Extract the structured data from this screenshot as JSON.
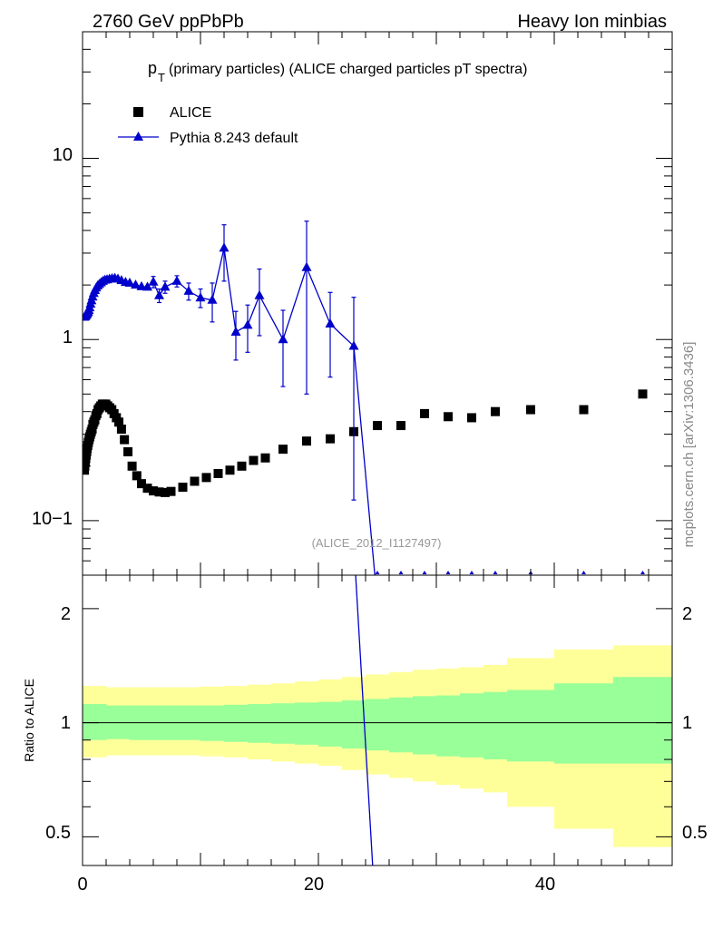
{
  "header": {
    "left": "2760 GeV ppPbPb",
    "right": "Heavy Ion minbias"
  },
  "title_main": "p",
  "title_sub": "T",
  "title_rest": "(primary particles) (ALICE charged particles pT spectra)",
  "side_label": "mcplots.cern.ch [arXiv:1306.3436]",
  "analysis_tag": "(ALICE_2012_I1127497)",
  "colors": {
    "data": "#000000",
    "mc": "#0000cc",
    "band_outer": "#ffff99",
    "band_inner": "#99ff99"
  },
  "chart_data": [
    {
      "type": "scatter",
      "yscale": "log",
      "xlim": [
        0,
        50
      ],
      "ylim": [
        0.05,
        50
      ],
      "ytick_labels": [
        "10−1",
        "1",
        "10"
      ],
      "legend_position": "top-left",
      "series": [
        {
          "name": "ALICE",
          "marker": "square",
          "points": [
            [
              0.16,
              0.19
            ],
            [
              0.19,
              0.2
            ],
            [
              0.23,
              0.21
            ],
            [
              0.27,
              0.22
            ],
            [
              0.31,
              0.23
            ],
            [
              0.35,
              0.24
            ],
            [
              0.39,
              0.25
            ],
            [
              0.44,
              0.26
            ],
            [
              0.49,
              0.27
            ],
            [
              0.55,
              0.28
            ],
            [
              0.61,
              0.29
            ],
            [
              0.67,
              0.3
            ],
            [
              0.74,
              0.31
            ],
            [
              0.81,
              0.32
            ],
            [
              0.88,
              0.34
            ],
            [
              0.96,
              0.35
            ],
            [
              1.04,
              0.36
            ],
            [
              1.13,
              0.38
            ],
            [
              1.22,
              0.39
            ],
            [
              1.32,
              0.41
            ],
            [
              1.43,
              0.42
            ],
            [
              1.55,
              0.43
            ],
            [
              1.68,
              0.44
            ],
            [
              1.82,
              0.44
            ],
            [
              1.97,
              0.44
            ],
            [
              2.13,
              0.43
            ],
            [
              2.3,
              0.42
            ],
            [
              2.48,
              0.41
            ],
            [
              2.67,
              0.39
            ],
            [
              2.87,
              0.37
            ],
            [
              3.08,
              0.35
            ],
            [
              3.3,
              0.32
            ],
            [
              3.55,
              0.28
            ],
            [
              3.85,
              0.24
            ],
            [
              4.2,
              0.2
            ],
            [
              4.6,
              0.177
            ],
            [
              5.0,
              0.16
            ],
            [
              5.5,
              0.151
            ],
            [
              6.0,
              0.146
            ],
            [
              6.5,
              0.144
            ],
            [
              7.0,
              0.143
            ],
            [
              7.5,
              0.145
            ],
            [
              8.5,
              0.153
            ],
            [
              9.5,
              0.165
            ],
            [
              10.5,
              0.173
            ],
            [
              11.5,
              0.182
            ],
            [
              12.5,
              0.19
            ],
            [
              13.5,
              0.2
            ],
            [
              14.5,
              0.215
            ],
            [
              15.5,
              0.222
            ],
            [
              17,
              0.248
            ],
            [
              19,
              0.275
            ],
            [
              21,
              0.283
            ],
            [
              23,
              0.31
            ],
            [
              25,
              0.335
            ],
            [
              27,
              0.335
            ],
            [
              29,
              0.39
            ],
            [
              31,
              0.375
            ],
            [
              33,
              0.37
            ],
            [
              35,
              0.4
            ],
            [
              38,
              0.41
            ],
            [
              42.5,
              0.41
            ],
            [
              47.5,
              0.5
            ]
          ]
        },
        {
          "name": "Pythia 8.243 default",
          "marker": "triangle",
          "points": [
            [
              0.16,
              1.33,
              0.0
            ],
            [
              0.2,
              1.34,
              0.0
            ],
            [
              0.24,
              1.35,
              0.0
            ],
            [
              0.28,
              1.36,
              0.0
            ],
            [
              0.32,
              1.37,
              0.0
            ],
            [
              0.36,
              1.38,
              0.0
            ],
            [
              0.41,
              1.4,
              0.0
            ],
            [
              0.47,
              1.42,
              0.0
            ],
            [
              0.53,
              1.45,
              0.0
            ],
            [
              0.6,
              1.5,
              0.0
            ],
            [
              0.68,
              1.57,
              0.0
            ],
            [
              0.76,
              1.64,
              0.0
            ],
            [
              0.85,
              1.72,
              0.0
            ],
            [
              0.95,
              1.8,
              0.0
            ],
            [
              1.05,
              1.87,
              0.0
            ],
            [
              1.16,
              1.93,
              0.0
            ],
            [
              1.28,
              1.98,
              0.0
            ],
            [
              1.42,
              2.02,
              0.0
            ],
            [
              1.57,
              2.06,
              0.0
            ],
            [
              1.73,
              2.1,
              0.0
            ],
            [
              1.9,
              2.13,
              0.0
            ],
            [
              2.08,
              2.14,
              0.0
            ],
            [
              2.28,
              2.16,
              0.0
            ],
            [
              2.5,
              2.17,
              0.0
            ],
            [
              2.74,
              2.18,
              0.0
            ],
            [
              3.0,
              2.16,
              0.0
            ],
            [
              3.3,
              2.12,
              0.0
            ],
            [
              3.65,
              2.07,
              0.0
            ],
            [
              4.0,
              2.05,
              0.0
            ],
            [
              4.5,
              2.0,
              0.0
            ],
            [
              5.0,
              1.96,
              0.0
            ],
            [
              5.5,
              1.95,
              0.0
            ],
            [
              6.0,
              2.08,
              0.15
            ],
            [
              6.5,
              1.75,
              0.15
            ],
            [
              7.0,
              1.95,
              0.15
            ],
            [
              8.0,
              2.1,
              0.15
            ],
            [
              9.0,
              1.85,
              0.2
            ],
            [
              10,
              1.7,
              0.2
            ],
            [
              11,
              1.65,
              0.4
            ],
            [
              12.0,
              3.2,
              1.1
            ],
            [
              13.0,
              1.1,
              0.33
            ],
            [
              14.0,
              1.2,
              0.35
            ],
            [
              15.0,
              1.75,
              0.7
            ],
            [
              17.0,
              1.0,
              0.45
            ],
            [
              19.0,
              2.5,
              2.0
            ],
            [
              21.0,
              1.22,
              0.6
            ],
            [
              23.0,
              0.92,
              0.79
            ]
          ]
        }
      ]
    },
    {
      "type": "area",
      "ylabel": "Ratio to ALICE",
      "xlim": [
        0,
        50
      ],
      "ylim": [
        0.42,
        2.45
      ],
      "yscale": "log",
      "x_ticks": [
        "0",
        "20",
        "40"
      ],
      "y_ticks": [
        "0.5",
        "1",
        "2"
      ],
      "bands": {
        "edges": [
          0,
          2,
          4,
          6,
          8,
          10,
          12,
          14,
          16,
          18,
          20,
          22,
          24,
          26,
          28,
          30,
          32,
          34,
          36,
          40,
          45,
          50
        ],
        "inner_low": [
          0.9,
          0.905,
          0.9,
          0.9,
          0.9,
          0.895,
          0.89,
          0.885,
          0.88,
          0.875,
          0.865,
          0.855,
          0.845,
          0.835,
          0.825,
          0.815,
          0.81,
          0.8,
          0.79,
          0.78,
          0.78
        ],
        "inner_high": [
          1.12,
          1.11,
          1.11,
          1.11,
          1.11,
          1.11,
          1.115,
          1.12,
          1.125,
          1.13,
          1.135,
          1.145,
          1.155,
          1.165,
          1.175,
          1.18,
          1.195,
          1.205,
          1.22,
          1.27,
          1.32
        ],
        "outer_low": [
          0.81,
          0.82,
          0.82,
          0.82,
          0.82,
          0.815,
          0.81,
          0.8,
          0.79,
          0.78,
          0.77,
          0.75,
          0.73,
          0.715,
          0.7,
          0.685,
          0.67,
          0.655,
          0.6,
          0.525,
          0.47
        ],
        "outer_high": [
          1.25,
          1.24,
          1.24,
          1.24,
          1.24,
          1.245,
          1.25,
          1.26,
          1.27,
          1.285,
          1.3,
          1.32,
          1.34,
          1.36,
          1.38,
          1.39,
          1.4,
          1.42,
          1.48,
          1.56,
          1.6
        ]
      },
      "ratio_line": [
        [
          23.0,
          2.97
        ],
        [
          24.6,
          0.42
        ]
      ]
    }
  ]
}
